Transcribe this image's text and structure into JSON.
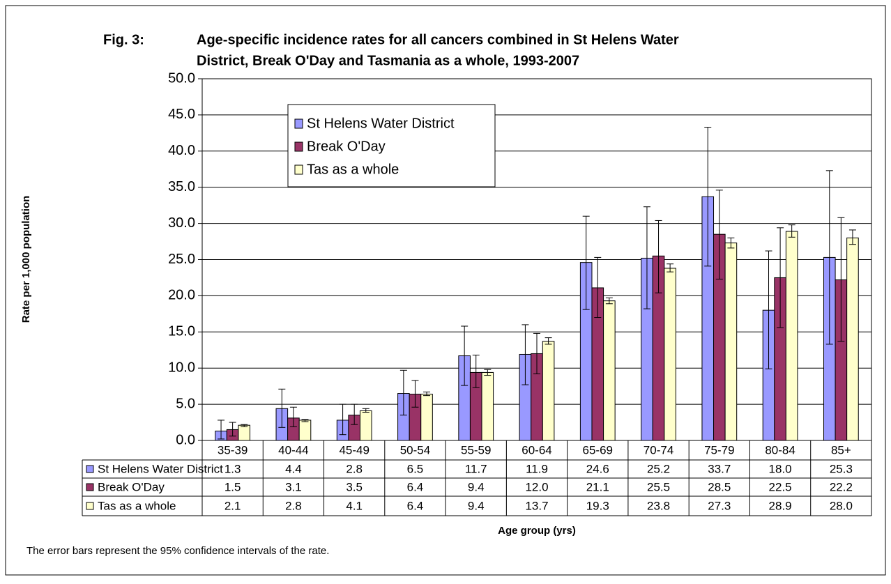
{
  "chart_data": {
    "type": "bar",
    "figure_label": "Fig. 3:",
    "title": [
      "Age-specific incidence rates for all cancers combined in St Helens Water",
      "District, Break O'Day and Tasmania as a whole, 1993-2007"
    ],
    "y_label": "Rate per 1,000 population",
    "x_label": "Age group (yrs)",
    "note": "The error bars represent the 95% confidence intervals of the rate.",
    "categories": [
      "35-39",
      "40-44",
      "45-49",
      "50-54",
      "55-59",
      "60-64",
      "65-69",
      "70-74",
      "75-79",
      "80-84",
      "85+"
    ],
    "series": [
      {
        "name": "St Helens Water District",
        "color": "#9999ff",
        "values": [
          1.3,
          4.4,
          2.8,
          6.5,
          11.7,
          11.9,
          24.6,
          25.2,
          33.7,
          18.0,
          25.3
        ],
        "value_labels": [
          "1.3",
          "4.4",
          "2.8",
          "6.5",
          "11.7",
          "11.9",
          "24.6",
          "25.2",
          "33.7",
          "18.0",
          "25.3"
        ],
        "ci_low": [
          0.2,
          1.8,
          0.8,
          3.5,
          7.6,
          7.7,
          18.1,
          18.2,
          24.1,
          9.9,
          13.3
        ],
        "ci_high": [
          2.8,
          7.1,
          5.0,
          9.7,
          15.8,
          16.0,
          31.0,
          32.3,
          43.3,
          26.2,
          37.3
        ]
      },
      {
        "name": "Break O'Day",
        "color": "#993366",
        "values": [
          1.5,
          3.1,
          3.5,
          6.4,
          9.4,
          12.0,
          21.1,
          25.5,
          28.5,
          22.5,
          22.2
        ],
        "value_labels": [
          "1.5",
          "3.1",
          "3.5",
          "6.4",
          "9.4",
          "12.0",
          "21.1",
          "25.5",
          "28.5",
          "22.5",
          "22.2"
        ],
        "ci_low": [
          0.6,
          1.9,
          2.2,
          4.6,
          7.3,
          9.2,
          17.0,
          20.4,
          22.3,
          15.6,
          13.7
        ],
        "ci_high": [
          2.5,
          4.6,
          5.0,
          8.3,
          11.8,
          14.8,
          25.3,
          30.4,
          34.6,
          29.4,
          30.8
        ]
      },
      {
        "name": "Tas as a whole",
        "color": "#ffffcc",
        "values": [
          2.1,
          2.8,
          4.1,
          6.4,
          9.4,
          13.7,
          19.3,
          23.8,
          27.3,
          28.9,
          28.0
        ],
        "value_labels": [
          "2.1",
          "2.8",
          "4.1",
          "6.4",
          "9.4",
          "13.7",
          "19.3",
          "23.8",
          "27.3",
          "28.9",
          "28.0"
        ],
        "ci_low": [
          1.9,
          2.6,
          3.9,
          6.2,
          9.0,
          13.3,
          18.9,
          23.3,
          26.6,
          28.1,
          27.1
        ],
        "ci_high": [
          2.2,
          2.9,
          4.4,
          6.7,
          9.8,
          14.2,
          19.7,
          24.4,
          28.0,
          29.8,
          29.1
        ]
      }
    ],
    "ylim": [
      0,
      50
    ],
    "yticks": [
      {
        "value": 0,
        "label": "0.0"
      },
      {
        "value": 5,
        "label": "5.0"
      },
      {
        "value": 10,
        "label": "10.0"
      },
      {
        "value": 15,
        "label": "15.0"
      },
      {
        "value": 20,
        "label": "20.0"
      },
      {
        "value": 25,
        "label": "25.0"
      },
      {
        "value": 30,
        "label": "30.0"
      },
      {
        "value": 35,
        "label": "35.0"
      },
      {
        "value": 40,
        "label": "40.0"
      },
      {
        "value": 45,
        "label": "45.0"
      },
      {
        "value": 50,
        "label": "50.0"
      }
    ],
    "grid": true,
    "legend": "upper left"
  }
}
